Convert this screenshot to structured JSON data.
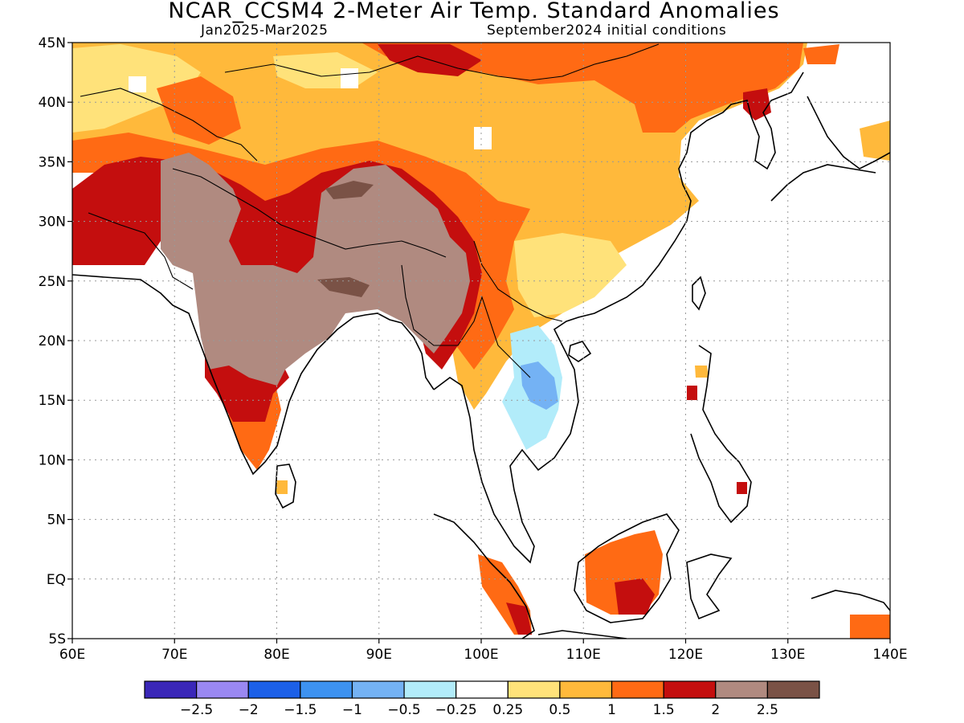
{
  "title": "NCAR_CCSM4 2-Meter Air Temp. Standard Anomalies",
  "period": "Jan2025-Mar2025",
  "init": "September2024 initial conditions",
  "map": {
    "lon_range": [
      60,
      140
    ],
    "lat_range": [
      -5,
      45
    ],
    "lon_ticks": [
      {
        "v": 60,
        "label": "60E"
      },
      {
        "v": 70,
        "label": "70E"
      },
      {
        "v": 80,
        "label": "80E"
      },
      {
        "v": 90,
        "label": "90E"
      },
      {
        "v": 100,
        "label": "100E"
      },
      {
        "v": 110,
        "label": "110E"
      },
      {
        "v": 120,
        "label": "120E"
      },
      {
        "v": 130,
        "label": "130E"
      },
      {
        "v": 140,
        "label": "140E"
      }
    ],
    "lat_ticks": [
      {
        "v": 45,
        "label": "45N"
      },
      {
        "v": 40,
        "label": "40N"
      },
      {
        "v": 35,
        "label": "35N"
      },
      {
        "v": 30,
        "label": "30N"
      },
      {
        "v": 25,
        "label": "25N"
      },
      {
        "v": 20,
        "label": "20N"
      },
      {
        "v": 15,
        "label": "15N"
      },
      {
        "v": 10,
        "label": "10N"
      },
      {
        "v": 5,
        "label": "5N"
      },
      {
        "v": 0,
        "label": "EQ"
      },
      {
        "v": -5,
        "label": "5S"
      }
    ]
  },
  "colorbar": {
    "colors": [
      "#3a27b8",
      "#9a88f2",
      "#1c60e8",
      "#3d92f0",
      "#74b2f4",
      "#b2ecfa",
      "#ffffff",
      "#ffe27a",
      "#ffb93b",
      "#ff6a14",
      "#c40e0e",
      "#b08a80",
      "#7a5246"
    ],
    "labels": [
      "-2.5",
      "-2",
      "-1.5",
      "-1",
      "-0.5",
      "-0.25",
      "0.25",
      "0.5",
      "1",
      "1.5",
      "2",
      "2.5"
    ]
  },
  "colors": {
    "pale_yellow": "#ffe27a",
    "yellow_orange": "#ffb93b",
    "orange": "#ff6a14",
    "red": "#c40e0e",
    "brown": "#b08a80",
    "dark_brown": "#7a5246",
    "light_cyan": "#b2ecfa",
    "light_blue": "#74b2f4"
  }
}
